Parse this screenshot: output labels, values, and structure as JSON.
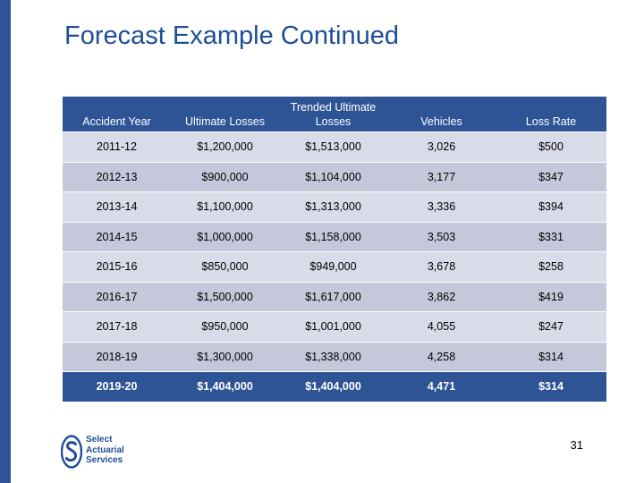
{
  "slide": {
    "title": "Forecast Example Continued",
    "page_number": "31"
  },
  "table": {
    "headers": [
      "Accident Year",
      "Ultimate Losses",
      "Trended Ultimate Losses",
      "Vehicles",
      "Loss Rate"
    ],
    "rows": [
      [
        "2011-12",
        "$1,200,000",
        "$1,513,000",
        "3,026",
        "$500"
      ],
      [
        "2012-13",
        "$900,000",
        "$1,104,000",
        "3,177",
        "$347"
      ],
      [
        "2013-14",
        "$1,100,000",
        "$1,313,000",
        "3,336",
        "$394"
      ],
      [
        "2014-15",
        "$1,000,000",
        "$1,158,000",
        "3,503",
        "$331"
      ],
      [
        "2015-16",
        "$850,000",
        "$949,000",
        "3,678",
        "$258"
      ],
      [
        "2016-17",
        "$1,500,000",
        "$1,617,000",
        "3,862",
        "$419"
      ],
      [
        "2017-18",
        "$950,000",
        "$1,001,000",
        "4,055",
        "$247"
      ],
      [
        "2018-19",
        "$1,300,000",
        "$1,338,000",
        "4,258",
        "$314"
      ],
      [
        "2019-20",
        "$1,404,000",
        "$1,404,000",
        "4,471",
        "$314"
      ]
    ]
  },
  "logo": {
    "lines": [
      "Select",
      "Actuarial",
      "Services"
    ]
  },
  "colors": {
    "header_blue": "#2e5496",
    "row_light": "#d8dbe8",
    "row_dark": "#c5c8db",
    "title_blue": "#1f4e96"
  }
}
